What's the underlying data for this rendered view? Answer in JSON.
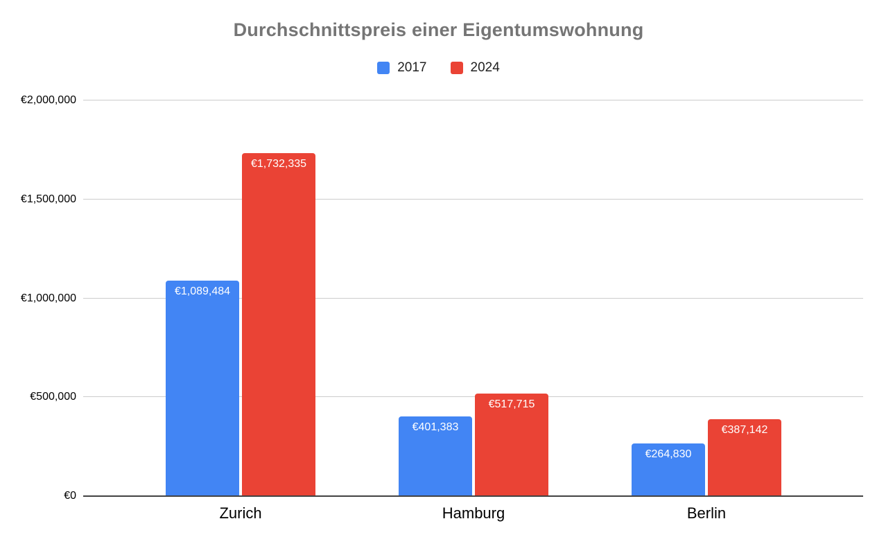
{
  "title": "Durchschnittspreis einer Eigentumswohnung",
  "colors": {
    "series_2017": "#4285F4",
    "series_2024": "#EA4335",
    "title_text": "#757575",
    "gridline": "#cccccc",
    "baseline": "#424242",
    "background": "#ffffff"
  },
  "legend": {
    "items": [
      {
        "label": "2017",
        "color": "#4285F4",
        "swatch_icon": "square-swatch-icon"
      },
      {
        "label": "2024",
        "color": "#EA4335",
        "swatch_icon": "square-swatch-icon"
      }
    ]
  },
  "chart_data": {
    "type": "bar",
    "title": "Durchschnittspreis einer Eigentumswohnung",
    "categories": [
      "Zurich",
      "Hamburg",
      "Berlin"
    ],
    "series": [
      {
        "name": "2017",
        "color": "#4285F4",
        "values": [
          1089484,
          401383,
          264830
        ],
        "data_labels": [
          "€1,089,484",
          "€401,383",
          "€264,830"
        ]
      },
      {
        "name": "2024",
        "color": "#EA4335",
        "values": [
          1732335,
          517715,
          387142
        ],
        "data_labels": [
          "€1,732,335",
          "€517,715",
          "€387,142"
        ]
      }
    ],
    "xlabel": "",
    "ylabel": "",
    "y_axis": {
      "min": 0,
      "max": 2000000,
      "tick_interval": 500000,
      "tick_values": [
        0,
        500000,
        1000000,
        1500000,
        2000000
      ],
      "tick_labels": [
        "€0",
        "€500,000",
        "€1,000,000",
        "€1,500,000",
        "€2,000,000"
      ]
    },
    "grid": true,
    "legend_position": "top",
    "data_labels_position": "inside-top",
    "data_labels_color": "#ffffff"
  }
}
